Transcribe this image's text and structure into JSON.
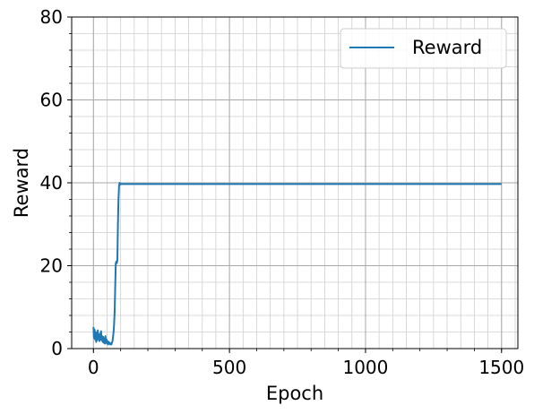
{
  "chart_data": {
    "type": "line",
    "title": "",
    "xlabel": "Epoch",
    "ylabel": "Reward",
    "xlim": [
      -80,
      1560
    ],
    "ylim": [
      0,
      80
    ],
    "xticks": [
      0,
      500,
      1000,
      1500
    ],
    "yticks": [
      0,
      20,
      40,
      60,
      80
    ],
    "grid": true,
    "minor_grid": true,
    "legend_position": "top-right",
    "series": [
      {
        "name": "Reward",
        "color": "#1f77b4",
        "x": [
          0,
          2,
          4,
          6,
          8,
          10,
          12,
          14,
          16,
          18,
          20,
          22,
          24,
          26,
          28,
          30,
          32,
          34,
          36,
          38,
          40,
          42,
          44,
          46,
          48,
          50,
          52,
          54,
          56,
          58,
          60,
          62,
          64,
          66,
          68,
          70,
          72,
          74,
          76,
          78,
          80,
          82,
          84,
          86,
          88,
          90,
          92,
          94,
          96,
          98,
          100,
          105,
          1500
        ],
        "y": [
          5.2,
          2.6,
          4.6,
          2.2,
          4.0,
          1.6,
          3.8,
          2.0,
          4.4,
          2.4,
          3.2,
          1.8,
          3.6,
          2.2,
          4.2,
          2.0,
          3.0,
          1.6,
          2.8,
          1.4,
          2.4,
          1.2,
          3.0,
          1.4,
          2.2,
          1.2,
          1.8,
          1.0,
          1.6,
          1.2,
          1.4,
          1.0,
          1.2,
          1.0,
          1.4,
          1.8,
          2.8,
          4.0,
          6.0,
          9.0,
          15.0,
          20.5,
          21.0,
          20.6,
          21.4,
          30.0,
          36.0,
          39.0,
          40.0,
          39.6,
          39.7,
          39.7,
          39.7
        ]
      }
    ]
  }
}
